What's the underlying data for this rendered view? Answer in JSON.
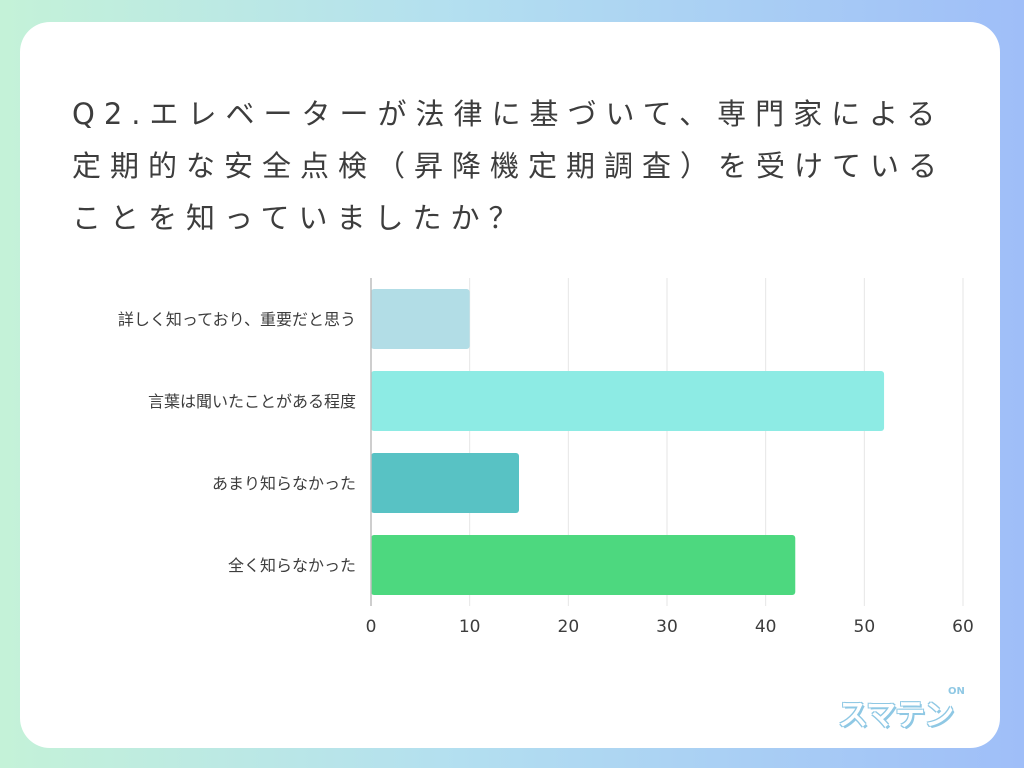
{
  "title": "Q2.エレベーターが法律に基づいて、専門家による定期的な安全点検（昇降機定期調査）を受けていることを知っていましたか？",
  "logo": {
    "text": "スマテン",
    "mark": "ON"
  },
  "chart_data": {
    "type": "bar",
    "orientation": "horizontal",
    "title": "Q2.エレベーターが法律に基づいて、専門家による定期的な安全点検（昇降機定期調査）を受けていることを知っていましたか？",
    "xlabel": "",
    "ylabel": "",
    "categories": [
      "詳しく知っており、重要だと思う",
      "言葉は聞いたことがある程度",
      "あまり知らなかった",
      "全く知らなかった"
    ],
    "values": [
      10,
      52,
      15,
      43
    ],
    "colors": [
      "#b2dde6",
      "#8debe4",
      "#58c2c4",
      "#4dd87f"
    ],
    "xlim": [
      0,
      60
    ],
    "xticks": [
      0,
      10,
      20,
      30,
      40,
      50,
      60
    ],
    "grid": true,
    "legend": "none"
  }
}
